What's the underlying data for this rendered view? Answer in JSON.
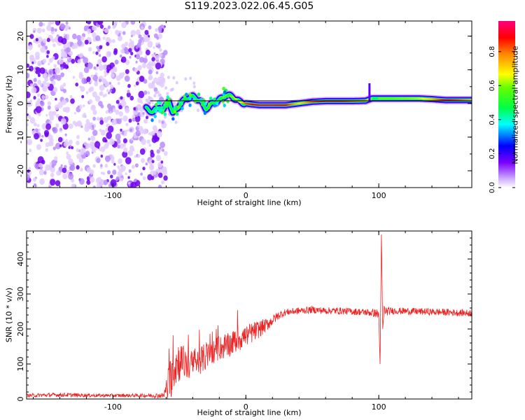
{
  "title": "S119.2023.022.06.45.G05",
  "chart_data": [
    {
      "type": "heatmap",
      "xlabel": "Height of straight line (km)",
      "ylabel": "Frequency (Hz)",
      "xlim": [
        -165,
        170
      ],
      "ylim": [
        -25,
        24.5
      ],
      "xticks": [
        -100,
        0,
        100
      ],
      "yticks": [
        -20,
        -10,
        0,
        10,
        20
      ],
      "colorbar": {
        "label": "Normalized spectral amplitude",
        "range": [
          0,
          0.98
        ],
        "ticks": [
          "0.0",
          "0.2",
          "0.4",
          "0.6",
          "0.8"
        ],
        "tick_values": [
          0.0,
          0.2,
          0.4,
          0.6,
          0.8
        ],
        "colormap": [
          "#ffffff",
          "#7a00ff",
          "#0000ff",
          "#00ffff",
          "#00ff00",
          "#ffff00",
          "#ff0000",
          "#ff0080"
        ]
      },
      "tracking_line": {
        "x": [
          -72,
          170
        ],
        "y": [
          0.8,
          0.8
        ],
        "color": "#000000"
      },
      "track_center": {
        "x": [
          -75,
          -70,
          -65,
          -62,
          -58,
          -55,
          -50,
          -45,
          -40,
          -35,
          -30,
          -25,
          -20,
          -15,
          -10,
          -5,
          0,
          5,
          10,
          20,
          30,
          40,
          50,
          60,
          70,
          80,
          90,
          95,
          100,
          110,
          120,
          130,
          140,
          150,
          160,
          170
        ],
        "y": [
          -1.5,
          -2.5,
          -1.0,
          -2.0,
          1.0,
          -3.0,
          -0.5,
          1.5,
          2.0,
          1.0,
          -1.5,
          0.0,
          1.0,
          2.5,
          2.0,
          0.5,
          0.0,
          -0.3,
          -0.5,
          -0.5,
          -0.5,
          0.0,
          0.5,
          0.7,
          0.7,
          0.7,
          0.8,
          1.5,
          1.5,
          1.5,
          1.5,
          1.5,
          1.3,
          1.0,
          1.0,
          1.0
        ],
        "amplitude": [
          0.3,
          0.35,
          0.4,
          0.4,
          0.45,
          0.35,
          0.45,
          0.5,
          0.55,
          0.55,
          0.55,
          0.55,
          0.6,
          0.6,
          0.62,
          0.65,
          0.85,
          0.9,
          0.95,
          0.95,
          0.9,
          0.7,
          0.85,
          0.92,
          0.92,
          0.85,
          0.8,
          0.55,
          0.6,
          0.6,
          0.62,
          0.65,
          0.75,
          0.92,
          0.85,
          0.75
        ]
      },
      "noise_region": {
        "x_range": [
          -165,
          -70
        ],
        "y_range": [
          -25,
          24.5
        ],
        "amplitude_range": [
          0.0,
          0.12
        ]
      }
    },
    {
      "type": "line",
      "xlabel": "Height of straight line (km)",
      "ylabel": "SNR (10 * v/v)",
      "xlim": [
        -165,
        170
      ],
      "ylim": [
        0,
        480
      ],
      "xticks": [
        -100,
        0,
        100
      ],
      "yticks": [
        0,
        100,
        200,
        300,
        400
      ],
      "color": "#ee2222",
      "series_envelope": {
        "x": [
          -165,
          -140,
          -110,
          -80,
          -62,
          -58,
          -55,
          -50,
          -45,
          -40,
          -35,
          -30,
          -25,
          -20,
          -15,
          -10,
          -5,
          0,
          5,
          10,
          15,
          20,
          25,
          30,
          40,
          50,
          60,
          70,
          80,
          90,
          98,
          100,
          101,
          102,
          103,
          104,
          106,
          110,
          130,
          150,
          170
        ],
        "y": [
          10,
          12,
          10,
          10,
          10,
          40,
          90,
          110,
          100,
          95,
          110,
          120,
          135,
          145,
          150,
          160,
          175,
          180,
          190,
          200,
          210,
          225,
          240,
          248,
          252,
          255,
          252,
          252,
          250,
          248,
          245,
          240,
          100,
          470,
          200,
          255,
          250,
          252,
          250,
          248,
          245
        ],
        "noise_amplitude": [
          5,
          6,
          5,
          5,
          8,
          60,
          70,
          60,
          45,
          45,
          40,
          40,
          35,
          35,
          35,
          35,
          40,
          30,
          30,
          25,
          20,
          15,
          12,
          10,
          10,
          10,
          10,
          10,
          10,
          10,
          12,
          20,
          0,
          0,
          0,
          15,
          12,
          10,
          10,
          10,
          10
        ]
      }
    }
  ]
}
